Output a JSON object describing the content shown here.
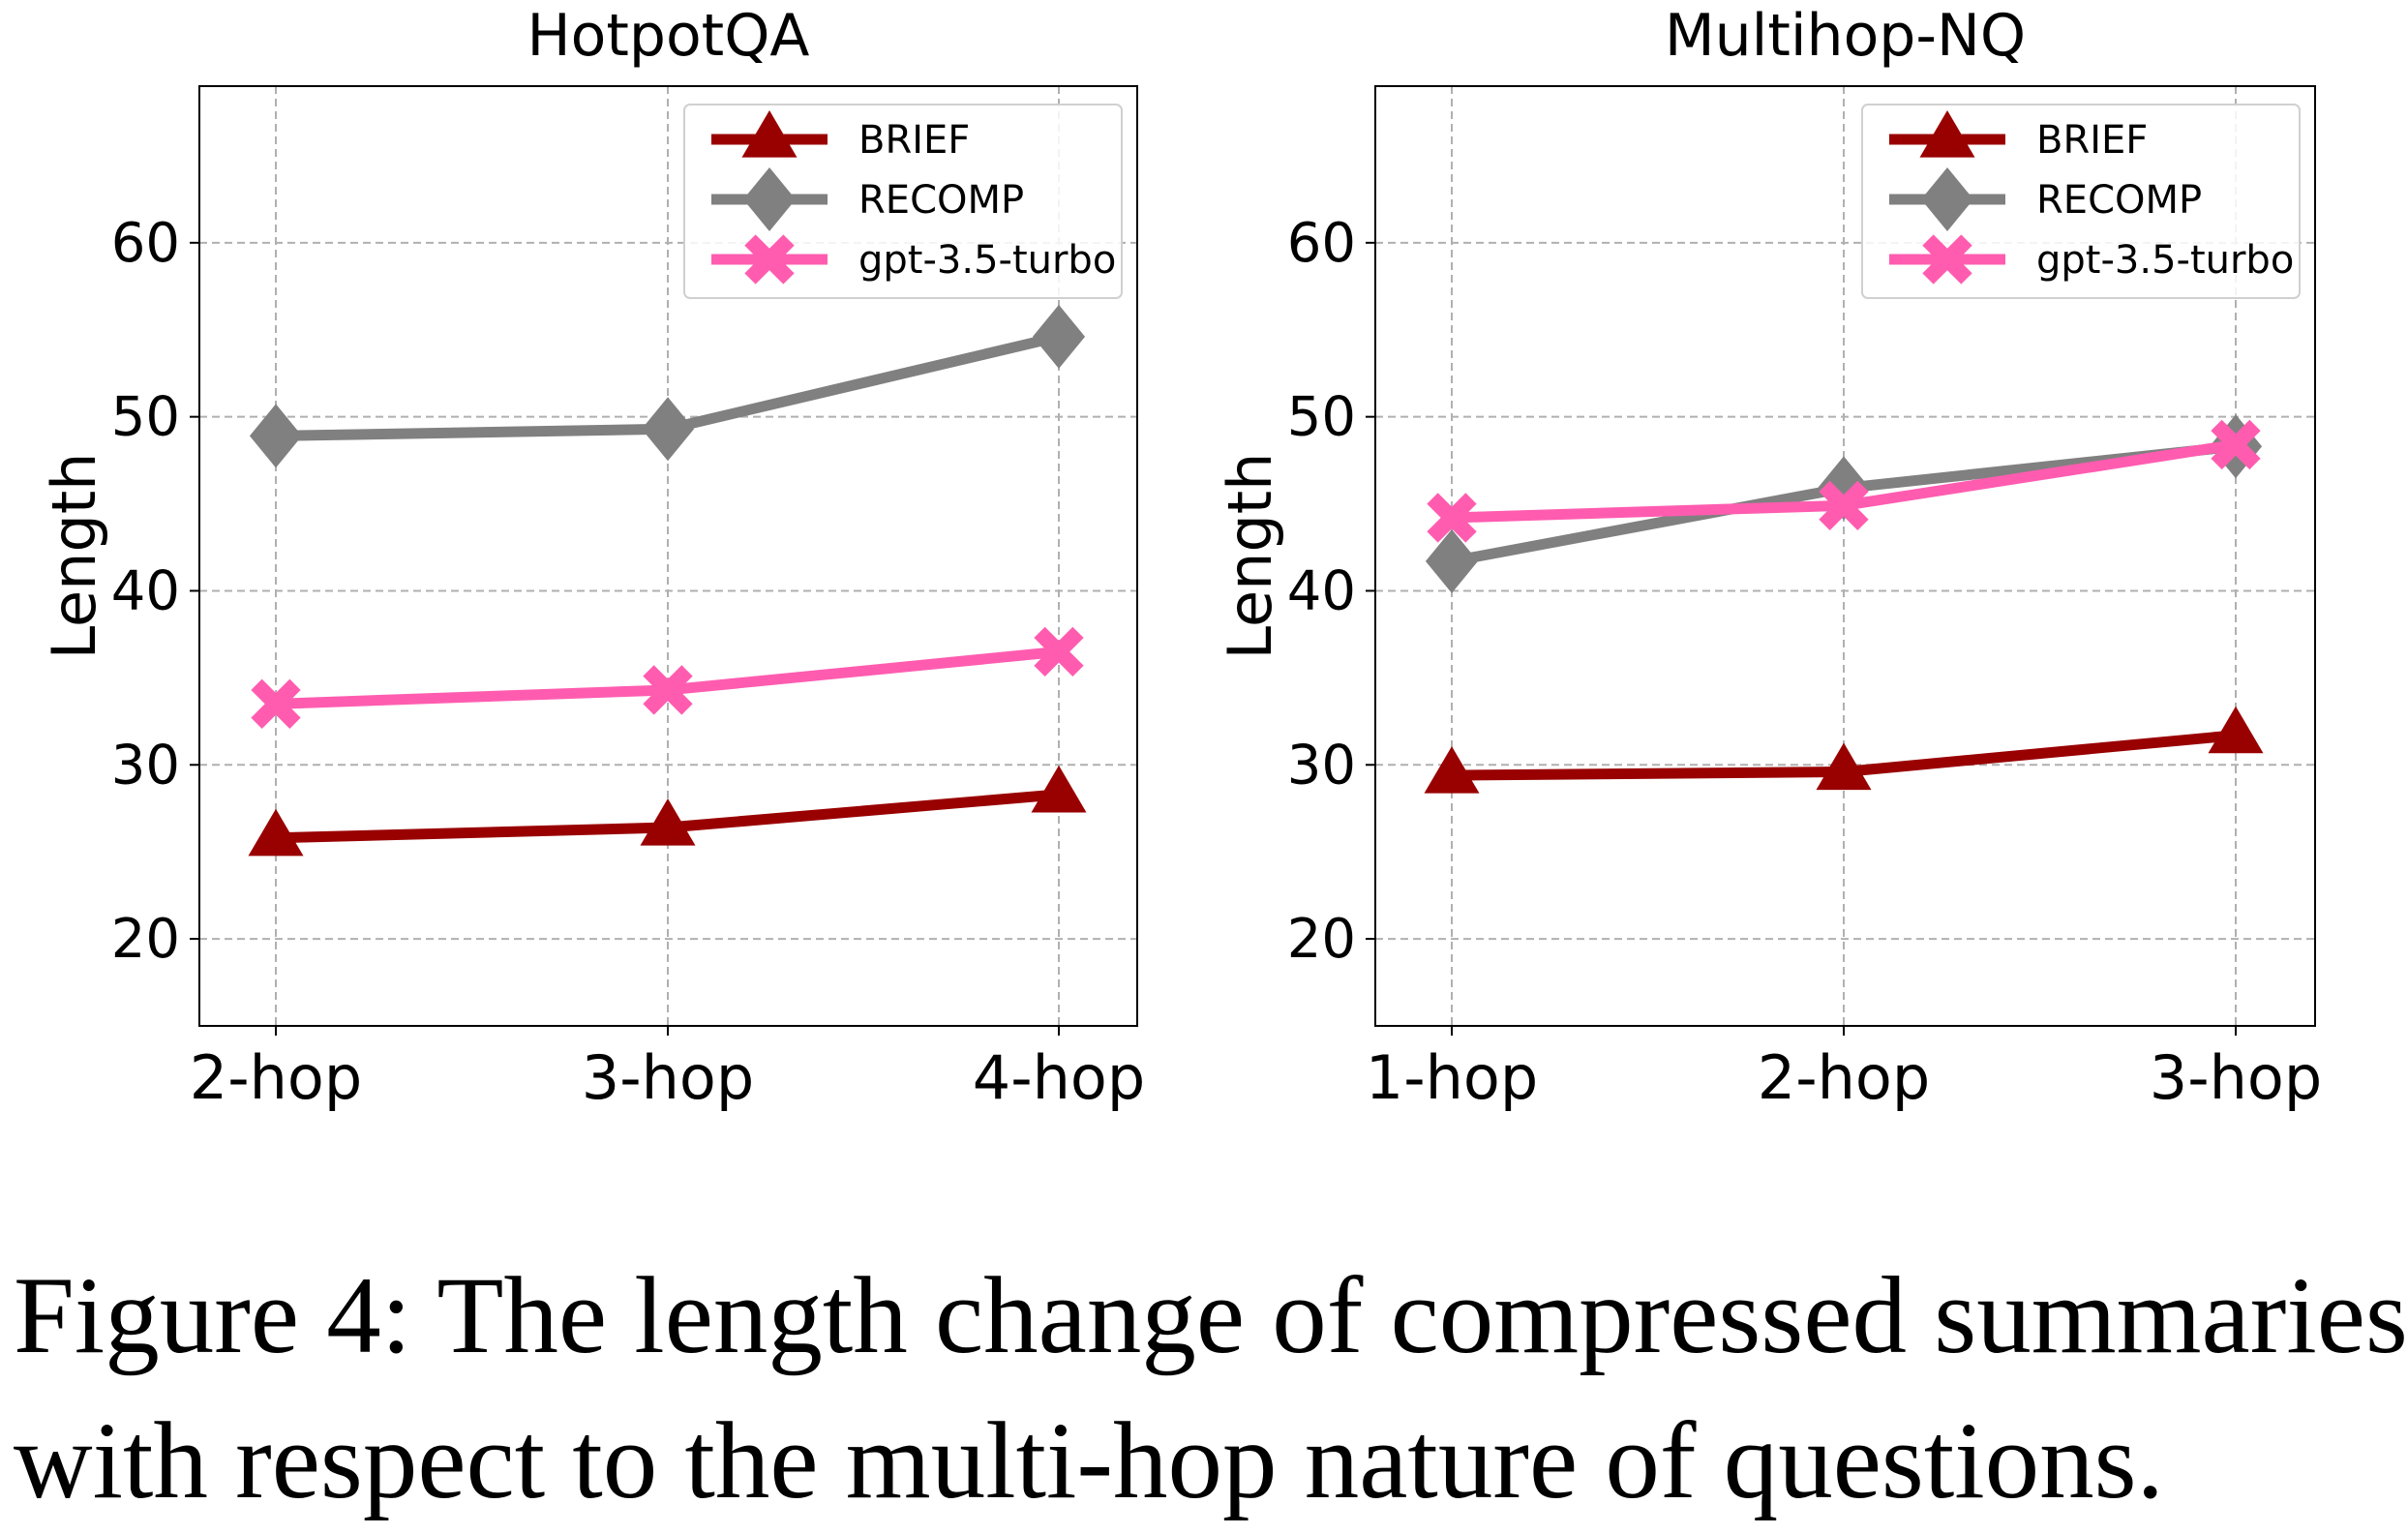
{
  "chart_data": [
    {
      "type": "line",
      "title": "HotpotQA",
      "xlabel": "",
      "ylabel": "Length",
      "categories": [
        "2-hop",
        "3-hop",
        "4-hop"
      ],
      "ylim": [
        15,
        69
      ],
      "yticks": [
        20,
        30,
        40,
        50,
        60
      ],
      "grid": true,
      "legend_position": "top-right",
      "series": [
        {
          "name": "BRIEF",
          "color": "#990000",
          "marker": "triangle",
          "values": [
            25.8,
            26.4,
            28.3
          ]
        },
        {
          "name": "RECOMP",
          "color": "#808080",
          "marker": "diamond",
          "values": [
            48.9,
            49.3,
            54.6
          ]
        },
        {
          "name": "gpt-3.5-turbo",
          "color": "#ff5cb0",
          "marker": "x",
          "values": [
            33.5,
            34.3,
            36.5
          ]
        }
      ]
    },
    {
      "type": "line",
      "title": "Multihop-NQ",
      "xlabel": "",
      "ylabel": "Length",
      "categories": [
        "1-hop",
        "2-hop",
        "3-hop"
      ],
      "ylim": [
        15,
        69
      ],
      "yticks": [
        20,
        30,
        40,
        50,
        60
      ],
      "grid": true,
      "legend_position": "top-right",
      "series": [
        {
          "name": "BRIEF",
          "color": "#990000",
          "marker": "triangle",
          "values": [
            29.4,
            29.6,
            31.7
          ]
        },
        {
          "name": "RECOMP",
          "color": "#808080",
          "marker": "diamond",
          "values": [
            41.7,
            45.9,
            48.3
          ]
        },
        {
          "name": "gpt-3.5-turbo",
          "color": "#ff5cb0",
          "marker": "x",
          "values": [
            44.2,
            44.9,
            48.4
          ]
        }
      ]
    }
  ],
  "caption": {
    "line1": "Figure 4: The length change of compressed summaries",
    "line2": "with respect to the multi-hop nature of questions."
  }
}
